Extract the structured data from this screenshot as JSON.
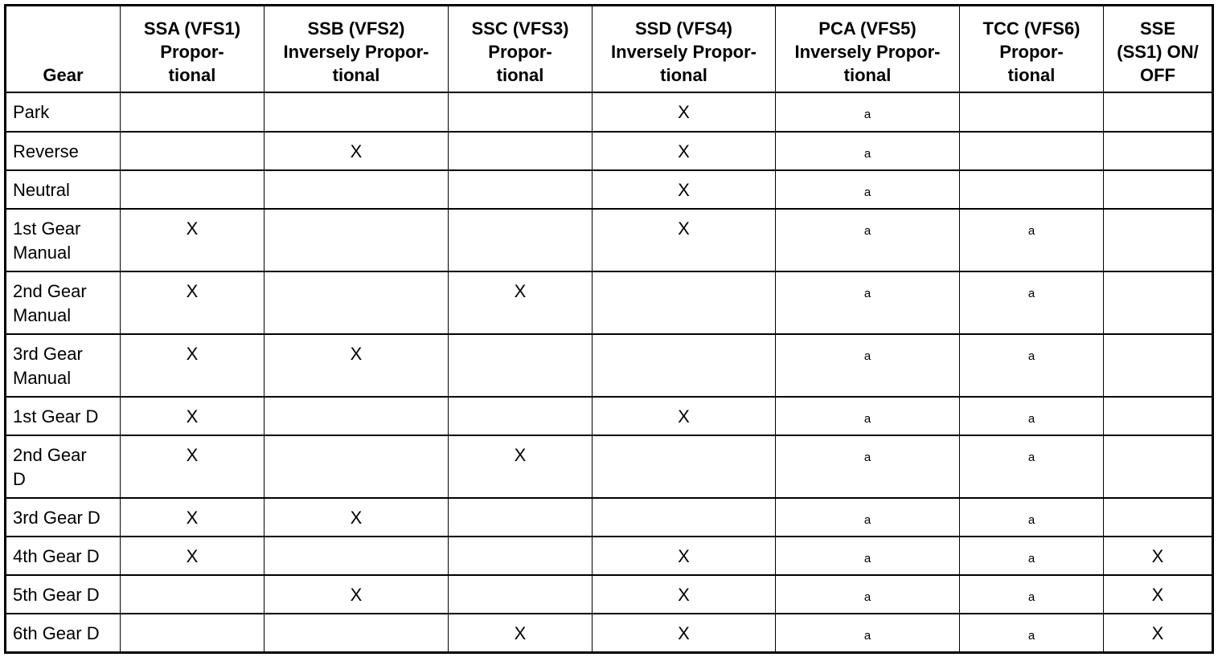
{
  "table": {
    "headers": [
      [
        "Gear"
      ],
      [
        "SSA (VFS1)",
        "Propor-",
        "tional"
      ],
      [
        "SSB (VFS2)",
        "Inversely Propor-",
        "tional"
      ],
      [
        "SSC (VFS3)",
        "Propor-",
        "tional"
      ],
      [
        "SSD (VFS4)",
        "Inversely Propor-",
        "tional"
      ],
      [
        "PCA (VFS5)",
        "Inversely Propor-",
        "tional"
      ],
      [
        "TCC (VFS6)",
        "Propor-",
        "tional"
      ],
      [
        "SSE",
        "(SS1) ON/",
        "OFF"
      ]
    ],
    "rows": [
      {
        "gear": [
          "Park"
        ],
        "cells": [
          "",
          "",
          "",
          "X",
          "a",
          "",
          ""
        ]
      },
      {
        "gear": [
          "Reverse"
        ],
        "cells": [
          "",
          "X",
          "",
          "X",
          "a",
          "",
          ""
        ]
      },
      {
        "gear": [
          "Neutral"
        ],
        "cells": [
          "",
          "",
          "",
          "X",
          "a",
          "",
          ""
        ]
      },
      {
        "gear": [
          "1st Gear",
          "Manual"
        ],
        "cells": [
          "X",
          "",
          "",
          "X",
          "a",
          "a",
          ""
        ]
      },
      {
        "gear": [
          "2nd Gear",
          "Manual"
        ],
        "cells": [
          "X",
          "",
          "X",
          "",
          "a",
          "a",
          ""
        ]
      },
      {
        "gear": [
          "3rd Gear",
          "Manual"
        ],
        "cells": [
          "X",
          "X",
          "",
          "",
          "a",
          "a",
          ""
        ]
      },
      {
        "gear": [
          "1st Gear D"
        ],
        "cells": [
          "X",
          "",
          "",
          "X",
          "a",
          "a",
          ""
        ]
      },
      {
        "gear": [
          "2nd Gear",
          "D"
        ],
        "cells": [
          "X",
          "",
          "X",
          "",
          "a",
          "a",
          ""
        ]
      },
      {
        "gear": [
          "3rd Gear D"
        ],
        "cells": [
          "X",
          "X",
          "",
          "",
          "a",
          "a",
          ""
        ]
      },
      {
        "gear": [
          "4th Gear D"
        ],
        "cells": [
          "X",
          "",
          "",
          "X",
          "a",
          "a",
          "X"
        ]
      },
      {
        "gear": [
          "5th Gear D"
        ],
        "cells": [
          "",
          "X",
          "",
          "X",
          "a",
          "a",
          "X"
        ]
      },
      {
        "gear": [
          "6th Gear D"
        ],
        "cells": [
          "",
          "",
          "X",
          "X",
          "a",
          "a",
          "X"
        ]
      }
    ]
  }
}
